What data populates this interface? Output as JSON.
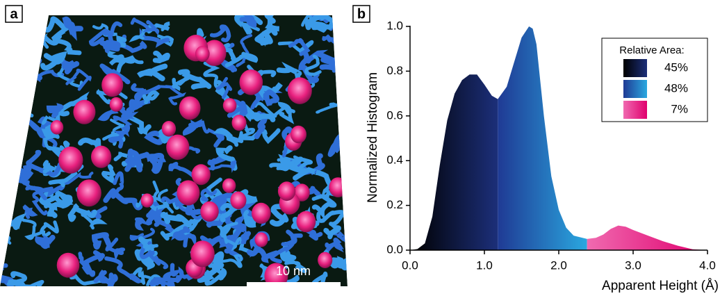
{
  "panel_a": {
    "label": "a",
    "scale_bar": "10 nm"
  },
  "panel_b": {
    "label": "b"
  },
  "chart_data": {
    "type": "area",
    "xlabel": "Apparent Height (Å)",
    "ylabel": "Normalized Histogram",
    "xlim": [
      0,
      4
    ],
    "ylim": [
      0,
      1
    ],
    "xticks": [
      {
        "value": 0,
        "label": "0.0"
      },
      {
        "value": 1,
        "label": "1.0"
      },
      {
        "value": 2,
        "label": "2.0"
      },
      {
        "value": 3,
        "label": "3.0"
      },
      {
        "value": 4,
        "label": "4.0"
      }
    ],
    "yticks": [
      {
        "value": 0,
        "label": "0.0"
      },
      {
        "value": 0.2,
        "label": "0.2"
      },
      {
        "value": 0.4,
        "label": "0.4"
      },
      {
        "value": 0.6,
        "label": "0.6"
      },
      {
        "value": 0.8,
        "label": "0.8"
      },
      {
        "value": 1,
        "label": "1.0"
      }
    ],
    "legend_title": "Relative Area:",
    "series": [
      {
        "name": "45%",
        "colors": [
          "#000000",
          "#1c2f7a"
        ],
        "x": [
          0.0,
          0.1,
          0.2,
          0.3,
          0.4,
          0.5,
          0.6,
          0.7,
          0.8,
          0.9,
          1.0,
          1.1,
          1.18
        ],
        "values": [
          0.0,
          0.005,
          0.03,
          0.15,
          0.38,
          0.58,
          0.7,
          0.76,
          0.785,
          0.785,
          0.74,
          0.69,
          0.675
        ]
      },
      {
        "name": "48%",
        "colors": [
          "#1f3a94",
          "#2aa8e0"
        ],
        "x": [
          1.18,
          1.3,
          1.4,
          1.5,
          1.6,
          1.65,
          1.7,
          1.8,
          1.9,
          2.0,
          2.1,
          2.2,
          2.38
        ],
        "values": [
          0.675,
          0.73,
          0.84,
          0.95,
          1.0,
          0.99,
          0.92,
          0.6,
          0.33,
          0.18,
          0.1,
          0.065,
          0.05
        ]
      },
      {
        "name": "7%",
        "colors": [
          "#f06ab0",
          "#e0006e"
        ],
        "x": [
          2.38,
          2.5,
          2.6,
          2.7,
          2.8,
          2.9,
          3.0,
          3.2,
          3.4,
          3.6,
          3.8,
          4.0
        ],
        "values": [
          0.05,
          0.055,
          0.07,
          0.095,
          0.11,
          0.105,
          0.09,
          0.065,
          0.04,
          0.02,
          0.004,
          0.0
        ]
      }
    ]
  }
}
